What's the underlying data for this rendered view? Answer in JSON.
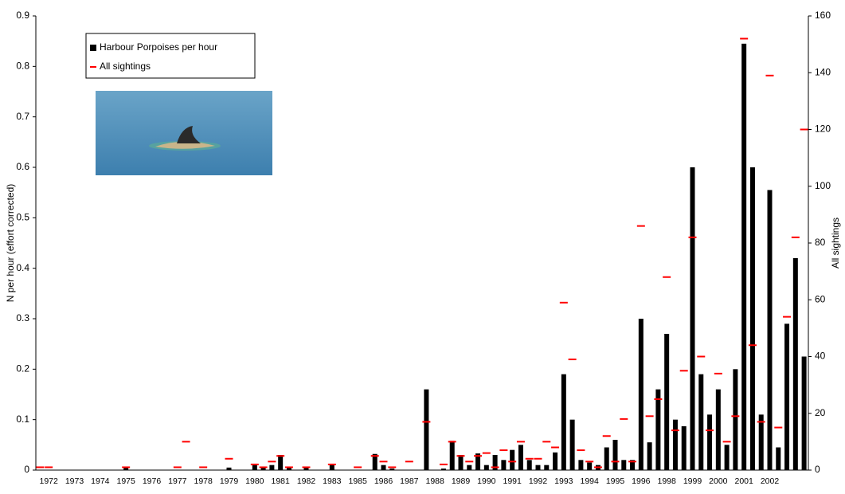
{
  "chart_data": {
    "type": "bar-dash",
    "y_label": "N per hour (effort corrected)",
    "y2_label": "All sightings",
    "categories": [
      null,
      "1972",
      null,
      null,
      "1973",
      null,
      null,
      "1974",
      null,
      null,
      "1975",
      null,
      null,
      "1976",
      null,
      null,
      "1977",
      null,
      null,
      "1978",
      null,
      null,
      "1979",
      null,
      null,
      "1980",
      null,
      null,
      "1981",
      null,
      null,
      "1982",
      null,
      null,
      "1983",
      null,
      null,
      "1985",
      null,
      null,
      "1986",
      null,
      null,
      "1987",
      null,
      null,
      "1988",
      null,
      null,
      "1989",
      null,
      null,
      "1990",
      null,
      null,
      "1991",
      null,
      null,
      "1992",
      null,
      null,
      "1993",
      null,
      null,
      "1994",
      null,
      null,
      "1995",
      null,
      null,
      "1996",
      null,
      null,
      "1998",
      null,
      null,
      "1999",
      null,
      null,
      "2000",
      null,
      null,
      "2001",
      null,
      null,
      "2002",
      null,
      null,
      null,
      null
    ],
    "series": [
      {
        "name": "Harbour Porpoises per hour",
        "color": "#000000",
        "axis": "y",
        "values": [
          0,
          0,
          0,
          0,
          0,
          0,
          0,
          0,
          0,
          0,
          0.005,
          0,
          0,
          0,
          0,
          0,
          0,
          0,
          0,
          0,
          0,
          0,
          0.005,
          0,
          0,
          0.012,
          0.005,
          0.01,
          0.03,
          0.005,
          0,
          0.005,
          0,
          0,
          0.012,
          0,
          0,
          0,
          0,
          0.032,
          0.01,
          0.003,
          0,
          0,
          0,
          0.16,
          0,
          0.003,
          0.058,
          0.03,
          0.01,
          0.033,
          0.01,
          0.03,
          0.02,
          0.04,
          0.05,
          0.02,
          0.01,
          0.01,
          0.035,
          0.19,
          0.1,
          0.02,
          0.015,
          0.01,
          0.045,
          0.06,
          0.02,
          0.02,
          0.3,
          0.055,
          0.16,
          0.27,
          0.1,
          0.087,
          0.6,
          0.19,
          0.11,
          0.16,
          0.05,
          0.2,
          0.845,
          0.6,
          0.11,
          0.555,
          0.045,
          0.29,
          0.42,
          0.225
        ]
      },
      {
        "name": "All sightings",
        "color": "#ff0000",
        "axis": "y2",
        "values": [
          1,
          1,
          null,
          null,
          null,
          null,
          null,
          null,
          null,
          null,
          1,
          null,
          null,
          null,
          null,
          null,
          1,
          10,
          null,
          1,
          null,
          null,
          4,
          null,
          null,
          2,
          1,
          3,
          5,
          1,
          null,
          1,
          null,
          null,
          2,
          null,
          null,
          1,
          null,
          5,
          3,
          1,
          null,
          3,
          null,
          17,
          null,
          2,
          10,
          5,
          3,
          5,
          6,
          1,
          7,
          3,
          10,
          4,
          4,
          10,
          8,
          59,
          39,
          7,
          3,
          1,
          12,
          3,
          18,
          3,
          86,
          19,
          25,
          68,
          14,
          35,
          82,
          40,
          14,
          34,
          10,
          19,
          152,
          44,
          17,
          139,
          15,
          54,
          82,
          120
        ]
      }
    ],
    "ylim": [
      0,
      0.9
    ],
    "yticks": [
      0,
      0.1,
      0.2,
      0.3,
      0.4,
      0.5,
      0.6,
      0.7,
      0.8,
      0.9
    ],
    "y2lim": [
      0,
      160
    ],
    "y2ticks": [
      0,
      20,
      40,
      60,
      80,
      100,
      120,
      140,
      160
    ],
    "legend": "upper-left"
  }
}
